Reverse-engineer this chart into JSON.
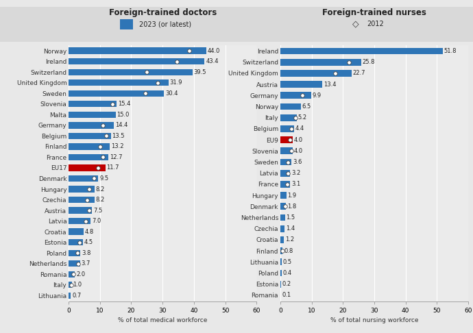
{
  "doctors": {
    "countries": [
      "Norway",
      "Ireland",
      "Switzerland",
      "United Kingdom",
      "Sweden",
      "Slovenia",
      "Malta",
      "Germany",
      "Belgium",
      "Finland",
      "France",
      "EU17",
      "Denmark",
      "Hungary",
      "Czechia",
      "Austria",
      "Latvia",
      "Croatia",
      "Estonia",
      "Poland",
      "Netherlands",
      "Romania",
      "Italy",
      "Lithuania"
    ],
    "values_2023": [
      44.0,
      43.4,
      39.5,
      31.9,
      30.4,
      15.4,
      15.0,
      14.4,
      13.5,
      13.2,
      12.7,
      11.7,
      9.5,
      8.2,
      8.2,
      7.5,
      7.0,
      4.8,
      4.5,
      3.8,
      3.7,
      2.0,
      1.0,
      0.7
    ],
    "values_2012": [
      38.5,
      34.5,
      25.0,
      28.5,
      24.5,
      14.0,
      null,
      11.0,
      12.0,
      10.0,
      11.0,
      9.5,
      8.0,
      6.5,
      6.0,
      6.5,
      5.5,
      null,
      3.5,
      2.8,
      3.0,
      1.5,
      0.8,
      null
    ],
    "bar_color": "#2E75B6",
    "eu_bar_color": "#C00000",
    "eu_label": "EU17",
    "title": "Foreign-trained doctors",
    "xlabel": "% of total medical workforce",
    "xlim": [
      0,
      60
    ],
    "xticks": [
      0,
      10,
      20,
      30,
      40,
      50,
      60
    ]
  },
  "nurses": {
    "countries": [
      "Ireland",
      "Switzerland",
      "United Kingdom",
      "Austria",
      "Germany",
      "Norway",
      "Italy",
      "Belgium",
      "EU9",
      "Slovenia",
      "Sweden",
      "Latvia",
      "France",
      "Hungary",
      "Denmark",
      "Netherlands",
      "Czechia",
      "Croatia",
      "Finland",
      "Lithuania",
      "Poland",
      "Estonia",
      "Romania"
    ],
    "values_2023": [
      51.8,
      25.8,
      22.7,
      13.4,
      9.9,
      6.5,
      5.2,
      4.4,
      4.0,
      4.0,
      3.6,
      3.2,
      3.1,
      1.9,
      1.8,
      1.5,
      1.4,
      1.2,
      0.8,
      0.5,
      0.4,
      0.2,
      0.1
    ],
    "values_2012": [
      null,
      22.0,
      17.5,
      null,
      7.0,
      null,
      4.8,
      3.5,
      3.2,
      3.5,
      2.5,
      2.5,
      2.2,
      null,
      1.5,
      null,
      null,
      null,
      0.6,
      null,
      null,
      null,
      null
    ],
    "bar_color": "#2E75B6",
    "eu_bar_color": "#C00000",
    "eu_label": "EU9",
    "title": "Foreign-trained nurses",
    "xlabel": "% of total nursing workforce",
    "xlim": [
      0,
      60
    ],
    "xticks": [
      0,
      10,
      20,
      30,
      40,
      50,
      60
    ]
  },
  "legend_2023_color": "#2E75B6",
  "legend_2023_label": "2023 (or latest)",
  "legend_2012_label": "2012",
  "fig_bg_color": "#E8E8E8",
  "panel_bg_color": "#EBEBEB",
  "legend_bg_color": "#D8D8D8",
  "grid_color": "#FFFFFF",
  "bar_height": 0.6,
  "text_fontsize": 6.0,
  "title_fontsize": 8.5,
  "tick_fontsize": 6.5,
  "xlabel_fontsize": 6.5,
  "bar_color_main": "#2E75B6"
}
